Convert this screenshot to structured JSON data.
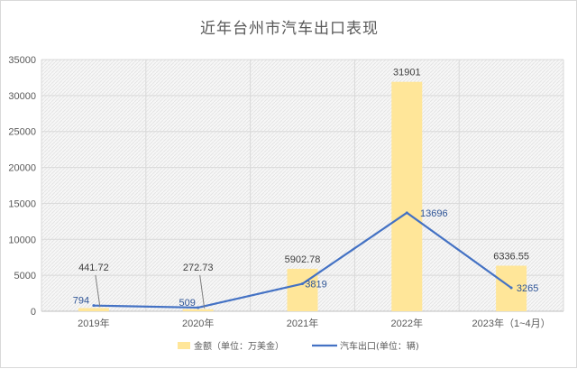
{
  "chart_data": {
    "type": "bar+line",
    "title": "近年台州市汽车出口表现",
    "categories": [
      "2019年",
      "2020年",
      "2021年",
      "2022年",
      "2023年（1~4月）"
    ],
    "series": [
      {
        "name": "金额（单位：万美金）",
        "type": "bar",
        "values": [
          441.72,
          272.73,
          5902.78,
          31901,
          6336.55
        ],
        "labels": [
          "441.72",
          "272.73",
          "5902.78",
          "31901",
          "6336.55"
        ]
      },
      {
        "name": "汽车出口(单位：辆)",
        "type": "line",
        "values": [
          794,
          509,
          3819,
          13696,
          3265
        ],
        "labels": [
          "794",
          "509",
          "3819",
          "13696",
          "3265"
        ]
      }
    ],
    "ylim": [
      0,
      35000
    ],
    "yticks": [
      0,
      5000,
      10000,
      15000,
      20000,
      25000,
      30000,
      35000
    ],
    "grid": true,
    "legend_position": "bottom",
    "colors": {
      "bar": "#ffe699",
      "line": "#4472c4",
      "grid": "#d9d9d9",
      "plot_bg": "#f2f2f2"
    }
  }
}
